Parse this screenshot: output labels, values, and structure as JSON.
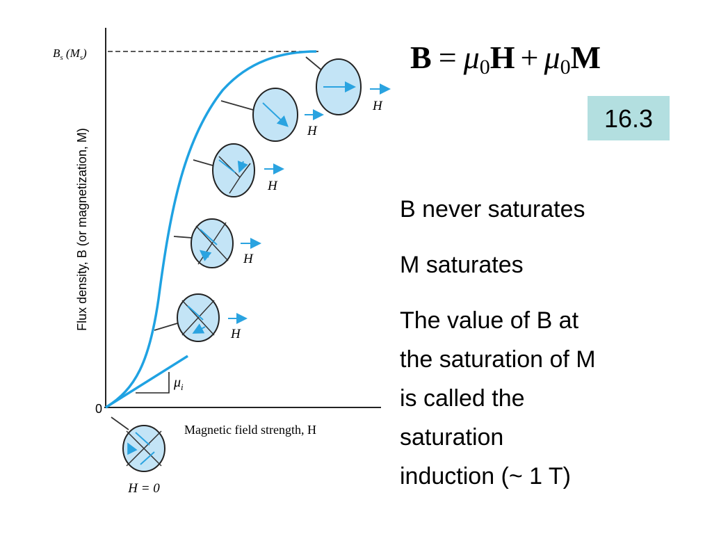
{
  "diagram": {
    "y_axis_label": "Flux density, B (or magnetization, M)",
    "x_axis_label": "Magnetic field strength, H",
    "origin_label": "0",
    "saturation_label": [
      "B",
      "s",
      " (M",
      "s",
      ")"
    ],
    "initial_slope_label": [
      "μ",
      "i"
    ],
    "domain_field_labels": [
      "H",
      "H",
      "H",
      "H",
      "H"
    ],
    "zero_field_label": "H = 0"
  },
  "equation": [
    "B",
    "=",
    "μ",
    "0",
    "H",
    "+",
    "μ",
    "0",
    "M"
  ],
  "equation_number": "16.3",
  "notes": [
    {
      "lines": [
        "B never saturates"
      ]
    },
    {
      "lines": [
        "M saturates"
      ]
    },
    {
      "lines": [
        "The value of B at",
        "the saturation of M",
        "is called the",
        "saturation",
        "induction (~ 1 T)"
      ]
    }
  ]
}
